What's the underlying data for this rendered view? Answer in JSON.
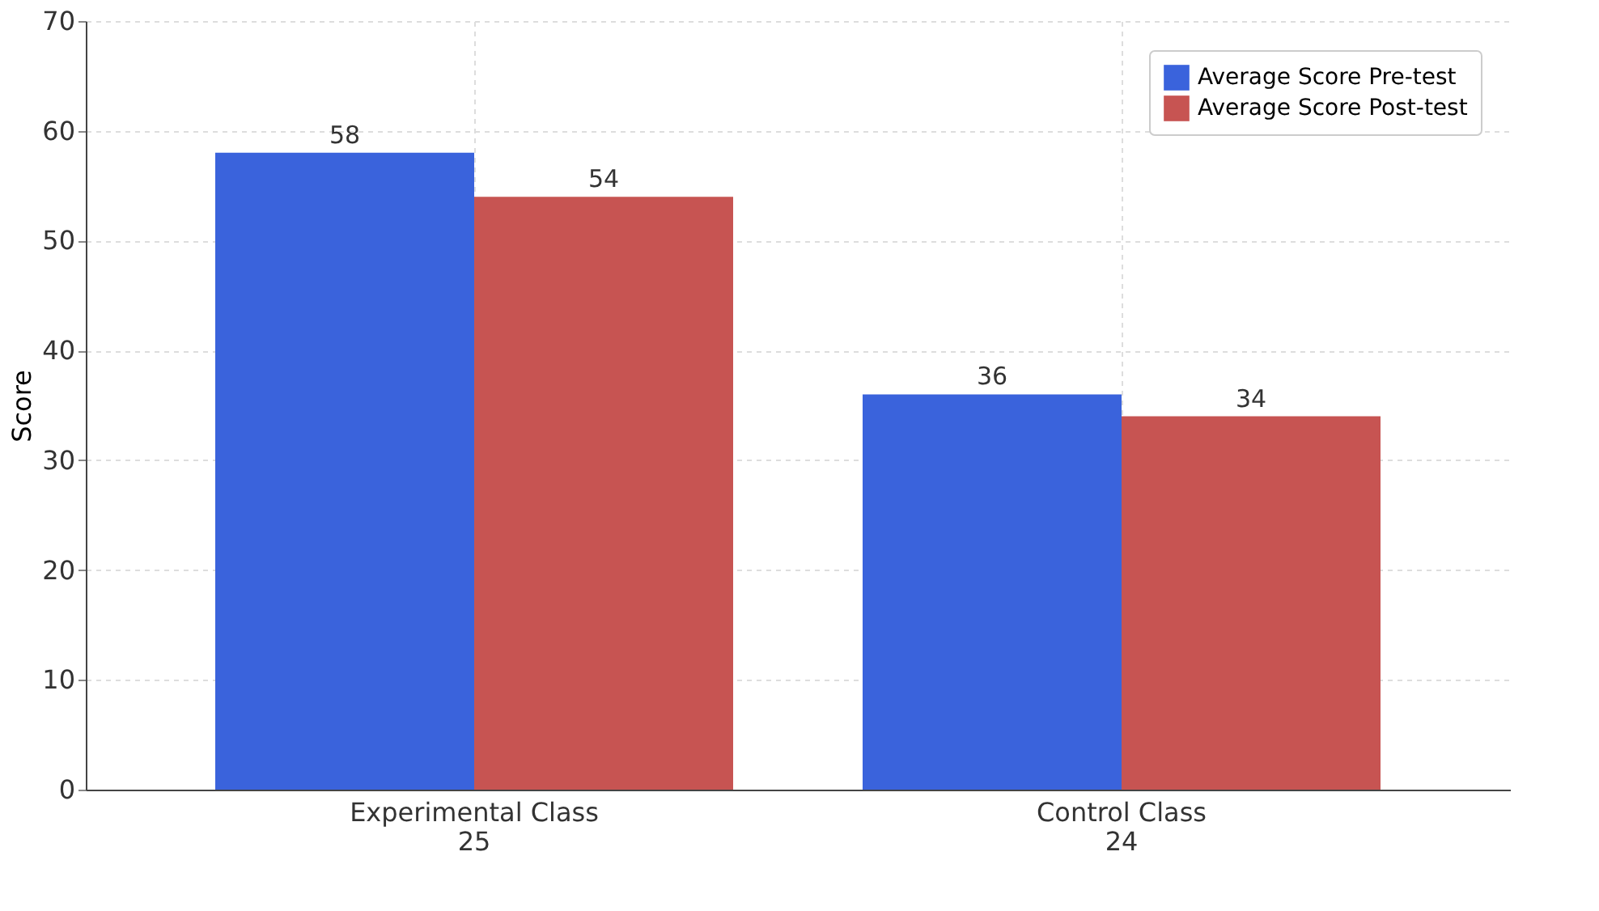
{
  "chart_data": {
    "type": "bar",
    "ylabel": "Score",
    "categories": [
      "Experimental Class\n25",
      "Control Class\n24"
    ],
    "series": [
      {
        "name": "Average Score Pre-test",
        "color": "#3a63dc",
        "values": [
          58,
          36
        ]
      },
      {
        "name": "Average Score Post-test",
        "color": "#c75452",
        "values": [
          54,
          34
        ]
      }
    ],
    "ylim": [
      0,
      70
    ],
    "yticks": [
      0,
      10,
      20,
      30,
      40,
      50,
      60,
      70
    ],
    "grid": true,
    "legend": "top right",
    "data_labels": true
  }
}
